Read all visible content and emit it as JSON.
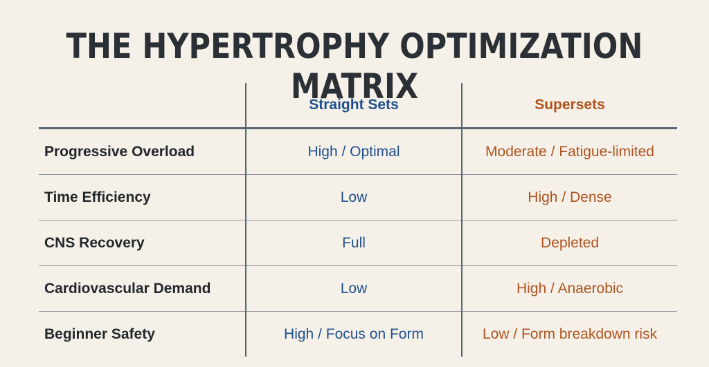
{
  "header": {
    "title": "THE HYPERTROPHY OPTIMIZATION MATRIX"
  },
  "table": {
    "columns": [
      "Straight Sets",
      "Supersets"
    ],
    "rows": [
      [
        "Progressive Overload",
        "High / Optimal",
        "Moderate / Fatigue-limited"
      ],
      [
        "Time Efficiency",
        "Low",
        "High / Dense"
      ],
      [
        "CNS Recovery",
        "Full",
        "Depleted"
      ],
      [
        "Cardiovascular Demand",
        "Low",
        "High / Anaerobic"
      ],
      [
        "Beginner Safety",
        "High / Focus on Form",
        "Low / Form breakdown risk"
      ]
    ]
  }
}
